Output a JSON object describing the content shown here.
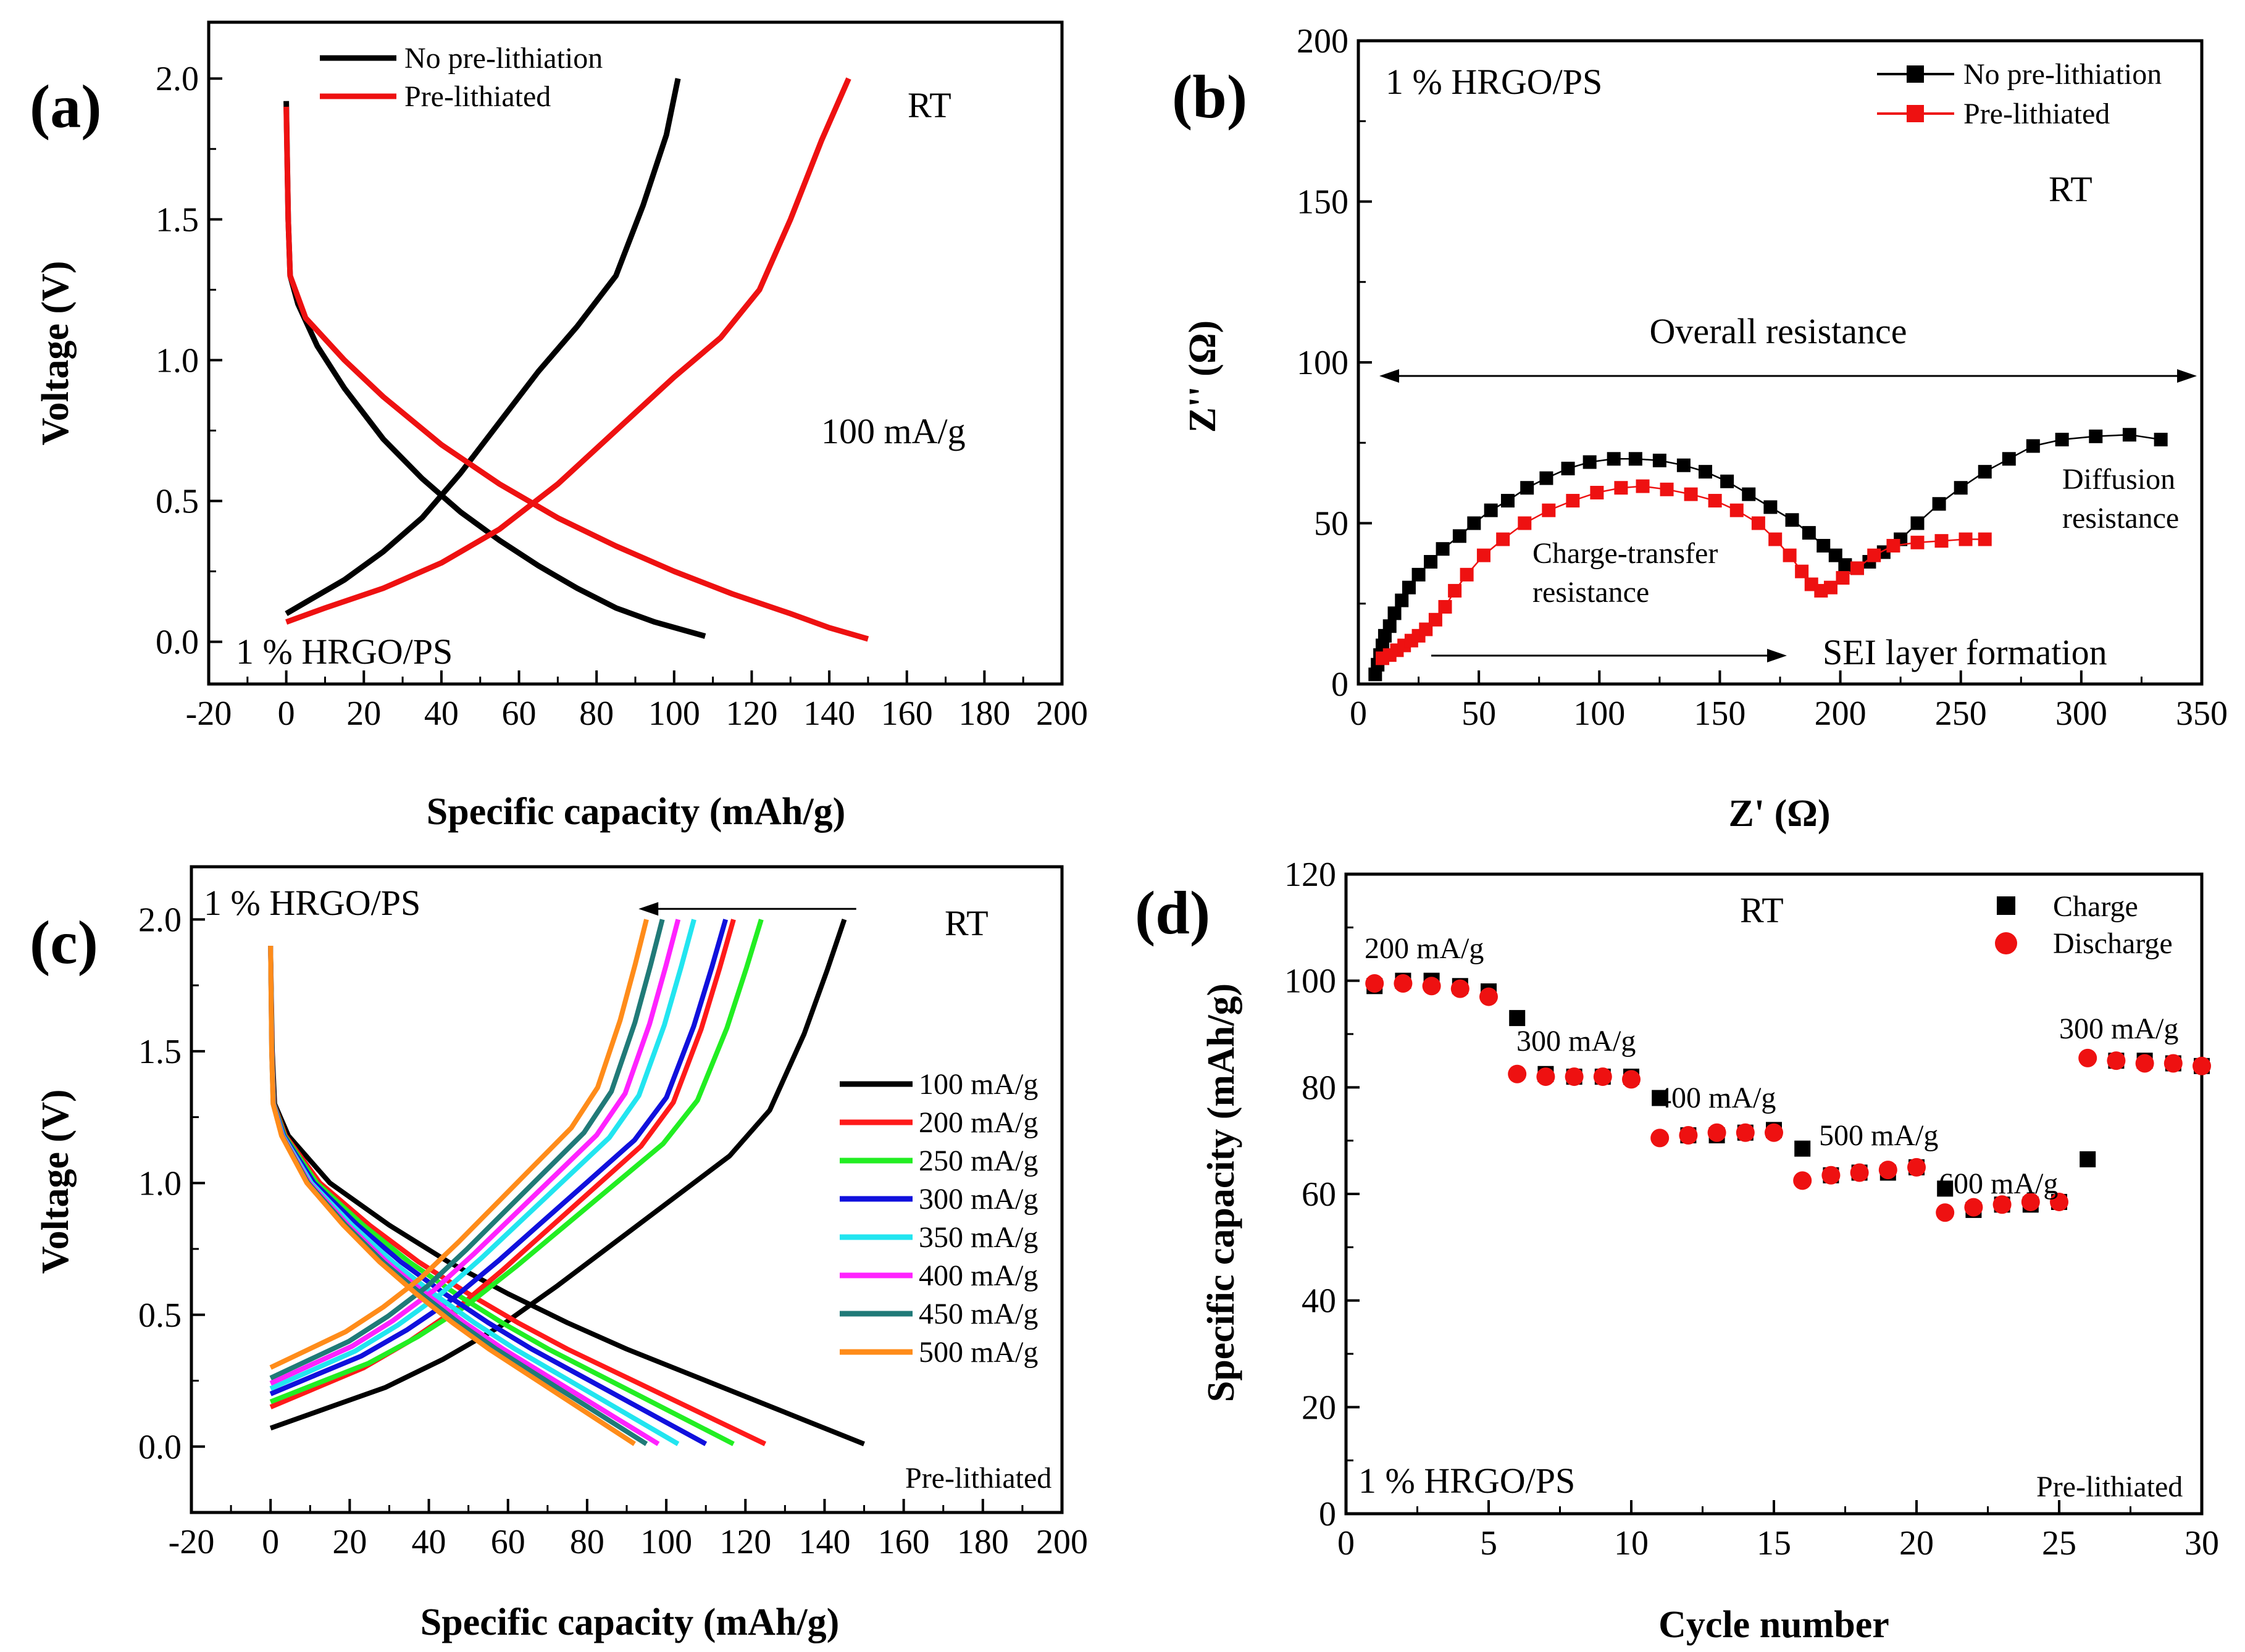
{
  "chart_data": [
    {
      "id": "a",
      "type": "line",
      "panel_label": "(a)",
      "xlabel": "Specific capacity (mAh/g)",
      "ylabel": "Voltage (V)",
      "xlim": [
        -20,
        200
      ],
      "ylim": [
        -0.15,
        2.2
      ],
      "xticks": [
        -20,
        0,
        20,
        40,
        60,
        80,
        100,
        120,
        140,
        160,
        180,
        200
      ],
      "yticks": [
        0.0,
        0.5,
        1.0,
        1.5,
        2.0
      ],
      "xtick_labels": [
        "-20",
        "0",
        "20",
        "40",
        "60",
        "80",
        "100",
        "120",
        "140",
        "160",
        "180",
        "200"
      ],
      "ytick_labels": [
        "0.0",
        "0.5",
        "1.0",
        "1.5",
        "2.0"
      ],
      "annotations": {
        "rt": "RT",
        "rate": "100 mA/g",
        "material": "1 % HRGO/PS"
      },
      "legend": [
        "No pre-lithiation",
        "Pre-lithiated"
      ],
      "series": [
        {
          "name": "No pre-lithiation",
          "color": "#000000",
          "discharge": [
            [
              0,
              1.92
            ],
            [
              0.5,
              1.5
            ],
            [
              1,
              1.3
            ],
            [
              3,
              1.2
            ],
            [
              8,
              1.05
            ],
            [
              15,
              0.9
            ],
            [
              25,
              0.72
            ],
            [
              35,
              0.58
            ],
            [
              45,
              0.46
            ],
            [
              55,
              0.36
            ],
            [
              65,
              0.27
            ],
            [
              75,
              0.19
            ],
            [
              85,
              0.12
            ],
            [
              95,
              0.07
            ],
            [
              108,
              0.02
            ]
          ],
          "charge": [
            [
              0,
              0.1
            ],
            [
              5,
              0.14
            ],
            [
              15,
              0.22
            ],
            [
              25,
              0.32
            ],
            [
              35,
              0.44
            ],
            [
              45,
              0.6
            ],
            [
              55,
              0.78
            ],
            [
              65,
              0.96
            ],
            [
              75,
              1.12
            ],
            [
              85,
              1.3
            ],
            [
              92,
              1.55
            ],
            [
              98,
              1.8
            ],
            [
              101,
              2.0
            ]
          ]
        },
        {
          "name": "Pre-lithiated",
          "color": "#ee1111",
          "discharge": [
            [
              0,
              1.9
            ],
            [
              0.5,
              1.5
            ],
            [
              1,
              1.3
            ],
            [
              5,
              1.15
            ],
            [
              15,
              1.0
            ],
            [
              25,
              0.87
            ],
            [
              40,
              0.7
            ],
            [
              55,
              0.56
            ],
            [
              70,
              0.44
            ],
            [
              85,
              0.34
            ],
            [
              100,
              0.25
            ],
            [
              115,
              0.17
            ],
            [
              130,
              0.1
            ],
            [
              140,
              0.05
            ],
            [
              150,
              0.01
            ]
          ],
          "charge": [
            [
              0,
              0.07
            ],
            [
              10,
              0.12
            ],
            [
              25,
              0.19
            ],
            [
              40,
              0.28
            ],
            [
              55,
              0.4
            ],
            [
              70,
              0.56
            ],
            [
              85,
              0.75
            ],
            [
              100,
              0.94
            ],
            [
              112,
              1.08
            ],
            [
              122,
              1.25
            ],
            [
              130,
              1.5
            ],
            [
              138,
              1.78
            ],
            [
              145,
              2.0
            ]
          ]
        }
      ]
    },
    {
      "id": "b",
      "type": "scatter",
      "panel_label": "(b)",
      "xlabel": "Z' (Ω)",
      "ylabel": "Z'' (Ω)",
      "xlim": [
        0,
        350
      ],
      "ylim": [
        0,
        200
      ],
      "xticks": [
        0,
        50,
        100,
        150,
        200,
        250,
        300,
        350
      ],
      "yticks": [
        0,
        50,
        100,
        150,
        200
      ],
      "xtick_labels": [
        "0",
        "50",
        "100",
        "150",
        "200",
        "250",
        "300",
        "350"
      ],
      "ytick_labels": [
        "0",
        "50",
        "100",
        "150",
        "200"
      ],
      "annotations": {
        "material": "1 % HRGO/PS",
        "rt": "RT",
        "overall": "Overall resistance",
        "ct1": "Charge-transfer",
        "ct2": "resistance",
        "diff1": "Diffusion",
        "diff2": "resistance",
        "sei": "SEI layer formation"
      },
      "legend": [
        "No pre-lithiation",
        "Pre-lithiated"
      ],
      "series": [
        {
          "name": "No pre-lithiation",
          "color": "#000000",
          "points": [
            [
              7,
              3
            ],
            [
              8,
              6
            ],
            [
              9,
              9
            ],
            [
              10,
              12
            ],
            [
              11,
              15
            ],
            [
              13,
              18
            ],
            [
              15,
              22
            ],
            [
              18,
              26
            ],
            [
              21,
              30
            ],
            [
              25,
              34
            ],
            [
              30,
              38
            ],
            [
              35,
              42
            ],
            [
              42,
              46
            ],
            [
              48,
              50
            ],
            [
              55,
              54
            ],
            [
              62,
              57
            ],
            [
              70,
              61
            ],
            [
              78,
              64
            ],
            [
              87,
              67
            ],
            [
              96,
              69
            ],
            [
              106,
              70
            ],
            [
              115,
              70
            ],
            [
              125,
              69.5
            ],
            [
              135,
              68
            ],
            [
              144,
              66
            ],
            [
              153,
              63
            ],
            [
              162,
              59
            ],
            [
              171,
              55
            ],
            [
              180,
              51
            ],
            [
              187,
              47
            ],
            [
              193,
              43
            ],
            [
              198,
              40
            ],
            [
              202,
              37
            ],
            [
              207,
              36
            ],
            [
              212,
              38
            ],
            [
              218,
              41
            ],
            [
              225,
              45
            ],
            [
              232,
              50
            ],
            [
              241,
              56
            ],
            [
              250,
              61
            ],
            [
              260,
              66
            ],
            [
              270,
              70
            ],
            [
              280,
              74
            ],
            [
              292,
              76
            ],
            [
              306,
              77
            ],
            [
              320,
              77.5
            ],
            [
              333,
              76
            ]
          ]
        },
        {
          "name": "Pre-lithiated",
          "color": "#ee1111",
          "points": [
            [
              10,
              8
            ],
            [
              13,
              9
            ],
            [
              16,
              10.5
            ],
            [
              19,
              12
            ],
            [
              22,
              13.5
            ],
            [
              25,
              15
            ],
            [
              28,
              17
            ],
            [
              32,
              20
            ],
            [
              36,
              24
            ],
            [
              40,
              29
            ],
            [
              45,
              34
            ],
            [
              52,
              40
            ],
            [
              60,
              45
            ],
            [
              69,
              50
            ],
            [
              79,
              54
            ],
            [
              89,
              57
            ],
            [
              99,
              59.5
            ],
            [
              109,
              61
            ],
            [
              118,
              61.5
            ],
            [
              128,
              60.5
            ],
            [
              138,
              59
            ],
            [
              148,
              57
            ],
            [
              157,
              54
            ],
            [
              166,
              50
            ],
            [
              173,
              45
            ],
            [
              179,
              40
            ],
            [
              184,
              35
            ],
            [
              188,
              31
            ],
            [
              192,
              29
            ],
            [
              196,
              30
            ],
            [
              201,
              33
            ],
            [
              207,
              36
            ],
            [
              214,
              40
            ],
            [
              222,
              43
            ],
            [
              232,
              44
            ],
            [
              242,
              44.5
            ],
            [
              252,
              45
            ],
            [
              260,
              45
            ]
          ]
        }
      ]
    },
    {
      "id": "c",
      "type": "line",
      "panel_label": "(c)",
      "xlabel": "Specific capacity (mAh/g)",
      "ylabel": "Voltage (V)",
      "xlim": [
        -20,
        200
      ],
      "ylim": [
        -0.25,
        2.2
      ],
      "xticks": [
        -20,
        0,
        20,
        40,
        60,
        80,
        100,
        120,
        140,
        160,
        180,
        200
      ],
      "yticks": [
        0.0,
        0.5,
        1.0,
        1.5,
        2.0
      ],
      "xtick_labels": [
        "-20",
        "0",
        "20",
        "40",
        "60",
        "80",
        "100",
        "120",
        "140",
        "160",
        "180",
        "200"
      ],
      "ytick_labels": [
        "0.0",
        "0.5",
        "1.0",
        "1.5",
        "2.0"
      ],
      "annotations": {
        "material": "1 % HRGO/PS",
        "rt": "RT",
        "state": "Pre-lithiated"
      },
      "arrow": {
        "from_x": 148,
        "to_x": 93,
        "y": 2.04
      },
      "series": [
        {
          "name": "100 mA/g",
          "color": "#000000",
          "dcap": 150,
          "ccap": 145,
          "start_v": 0.07
        },
        {
          "name": "200 mA/g",
          "color": "#ff1a1a",
          "dcap": 125,
          "ccap": 117,
          "start_v": 0.15
        },
        {
          "name": "250 mA/g",
          "color": "#22ee22",
          "dcap": 117,
          "ccap": 124,
          "start_v": 0.17
        },
        {
          "name": "300 mA/g",
          "color": "#1010dd",
          "dcap": 110,
          "ccap": 115,
          "start_v": 0.2
        },
        {
          "name": "350 mA/g",
          "color": "#22e5f0",
          "dcap": 103,
          "ccap": 107,
          "start_v": 0.22
        },
        {
          "name": "400 mA/g",
          "color": "#ff22ff",
          "dcap": 98,
          "ccap": 103,
          "start_v": 0.24
        },
        {
          "name": "450 mA/g",
          "color": "#207a78",
          "dcap": 95,
          "ccap": 99,
          "start_v": 0.26
        },
        {
          "name": "500 mA/g",
          "color": "#ff8c1a",
          "dcap": 92,
          "ccap": 95,
          "start_v": 0.3
        }
      ]
    },
    {
      "id": "d",
      "type": "scatter",
      "panel_label": "(d)",
      "xlabel": "Cycle number",
      "ylabel": "Specific capacity (mAh/g)",
      "xlim": [
        0,
        30
      ],
      "ylim": [
        0,
        120
      ],
      "xticks": [
        0,
        5,
        10,
        15,
        20,
        25,
        30
      ],
      "yticks": [
        0,
        20,
        40,
        60,
        80,
        100,
        120
      ],
      "xtick_labels": [
        "0",
        "5",
        "10",
        "15",
        "20",
        "25",
        "30"
      ],
      "ytick_labels": [
        "0",
        "20",
        "40",
        "60",
        "80",
        "100",
        "120"
      ],
      "annotations": {
        "rt": "RT",
        "material": "1 % HRGO/PS",
        "state": "Pre-lithiated"
      },
      "rate_labels": [
        "200 mA/g",
        "300 mA/g",
        "400 mA/g",
        "500 mA/g",
        "600 mA/g",
        "300 mA/g"
      ],
      "legend": [
        "Charge",
        "Discharge"
      ],
      "series": [
        {
          "name": "Charge",
          "color": "#000000",
          "marker": "square",
          "x": [
            1,
            2,
            3,
            4,
            5,
            6,
            7,
            8,
            9,
            10,
            11,
            12,
            13,
            14,
            15,
            16,
            17,
            18,
            19,
            20,
            21,
            22,
            23,
            24,
            25,
            26,
            27,
            28,
            29,
            30
          ],
          "y": [
            99,
            100,
            100,
            99,
            98,
            93,
            82.5,
            82,
            82,
            82,
            78,
            71,
            71,
            71.5,
            72,
            68.5,
            63.5,
            64,
            64,
            65,
            61,
            57,
            58,
            58,
            58.5,
            66.5,
            85,
            85,
            84.5,
            84
          ]
        },
        {
          "name": "Discharge",
          "color": "#ee1111",
          "marker": "circle",
          "x": [
            1,
            2,
            3,
            4,
            5,
            6,
            7,
            8,
            9,
            10,
            11,
            12,
            13,
            14,
            15,
            16,
            17,
            18,
            19,
            20,
            21,
            22,
            23,
            24,
            25,
            26,
            27,
            28,
            29,
            30
          ],
          "y": [
            99.5,
            99.5,
            99,
            98.5,
            97,
            82.5,
            82,
            82,
            82,
            81.5,
            70.5,
            71,
            71.5,
            71.5,
            71.5,
            62.5,
            63.5,
            64,
            64.5,
            65,
            56.5,
            57.5,
            58,
            58.5,
            58.5,
            85.5,
            85,
            84.5,
            84.5,
            84
          ]
        }
      ]
    }
  ]
}
